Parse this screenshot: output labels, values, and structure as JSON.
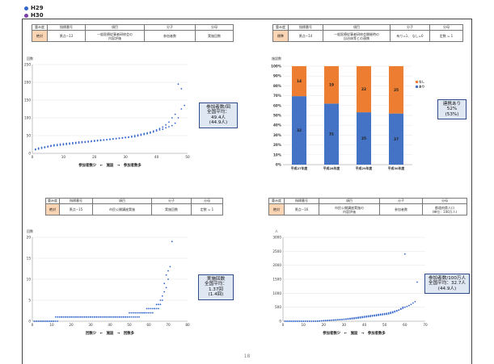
{
  "legend": [
    {
      "label": "H29",
      "color": "#3366cc"
    },
    {
      "label": "H30",
      "color": "#7a3fa8"
    }
  ],
  "page_number": "18",
  "table_headers": [
    "重み度",
    "指標番号",
    "項目",
    "分子",
    "分母"
  ],
  "charts": {
    "tl": {
      "row": [
        "絶対",
        "黒点−13",
        "一般医療従事者研修会の\n内容評価",
        "参加者数",
        "実施回数"
      ],
      "callout": [
        "参加者数/回",
        "全国平均：",
        "49.4人",
        "(44.9人)"
      ]
    },
    "tr": {
      "row": [
        "標準",
        "黒点−14",
        "一般医療従事者研修会開催時の\n自治体等との連携",
        "有り=1、 なし=0",
        "定数 = 1"
      ],
      "callout": [
        "連携あり",
        "52%",
        "(53%)"
      ]
    },
    "bl": {
      "row": [
        "絶対",
        "黒点−15",
        "市民公開講座実施",
        "実施回数",
        "定数 = 1"
      ],
      "callout": [
        "実施回数",
        "全国平均：",
        "1.37回",
        "(1.4回)"
      ]
    },
    "br": {
      "row": [
        "絶対",
        "黒点−16",
        "市民公開講座実施の\n内容評価",
        "参加者数",
        "都道府県人口\n(単位：100万人)"
      ],
      "callout": [
        "参加者数/100万人",
        "全国平均：32.7人",
        "(44.9人)"
      ]
    }
  },
  "chart_data": [
    {
      "id": "tl",
      "type": "scatter",
      "ylabel": "回数",
      "xlabel": "参加者数少　←　施設　→　参加者数多",
      "xlim": [
        0,
        50
      ],
      "ylim": [
        0,
        250
      ],
      "xticks": [
        0,
        10,
        20,
        30,
        40,
        50
      ],
      "yticks": [
        0,
        50,
        100,
        150,
        200,
        250
      ],
      "series": [
        {
          "color": "#3366cc",
          "values": [
            12,
            15,
            17,
            18,
            20,
            22,
            24,
            25,
            26,
            27,
            28,
            29,
            30,
            31,
            32,
            33,
            33,
            34,
            35,
            36,
            37,
            38,
            38,
            39,
            40,
            41,
            42,
            43,
            44,
            45,
            46,
            48,
            50,
            52,
            54,
            56,
            58,
            60,
            63,
            66,
            70,
            74,
            80,
            88,
            100,
            110,
            195,
            182
          ]
        },
        {
          "color": "#3366cc",
          "values": [
            10,
            12,
            14,
            16,
            18,
            20,
            21,
            22,
            23,
            24,
            25,
            26,
            27,
            28,
            29,
            30,
            31,
            32,
            33,
            34,
            35,
            36,
            37,
            38,
            39,
            40,
            41,
            42,
            43,
            44,
            45,
            46,
            47,
            49,
            51,
            53,
            55,
            57,
            60,
            63,
            66,
            68,
            72,
            75,
            78,
            85,
            100,
            125,
            135
          ]
        }
      ]
    },
    {
      "id": "tr",
      "type": "bar",
      "stacked": true,
      "ylabel": "施設数",
      "categories": [
        "平成27年度",
        "平成28年度",
        "平成29年度",
        "平成30年度"
      ],
      "yticks": [
        "0%",
        "10%",
        "20%",
        "30%",
        "40%",
        "50%",
        "60%",
        "70%",
        "80%",
        "90%",
        "100%"
      ],
      "series": [
        {
          "name": "あり",
          "color": "#4472c4",
          "values": [
            32,
            31,
            25,
            27
          ]
        },
        {
          "name": "なし",
          "color": "#ed7d31",
          "values": [
            14,
            19,
            22,
            25
          ]
        }
      ]
    },
    {
      "id": "bl",
      "type": "scatter",
      "ylabel": "回数",
      "xlabel": "回数少　←　施設　→　回数多",
      "xlim": [
        0,
        80
      ],
      "ylim": [
        0,
        20
      ],
      "xticks": [
        0,
        10,
        20,
        30,
        40,
        50,
        60,
        70,
        80
      ],
      "yticks": [
        0,
        5,
        10,
        15,
        20
      ],
      "series": [
        {
          "color": "#3366cc",
          "values": [
            0,
            0,
            0,
            0,
            0,
            0,
            0,
            0,
            0,
            0,
            0,
            1,
            1,
            1,
            1,
            1,
            1,
            1,
            1,
            1,
            1,
            1,
            1,
            1,
            1,
            1,
            1,
            1,
            1,
            1,
            1,
            1,
            1,
            1,
            1,
            1,
            1,
            1,
            1,
            1,
            1,
            1,
            1,
            1,
            1,
            1,
            1,
            1,
            1,
            1,
            1,
            1,
            1,
            1,
            1,
            2,
            2,
            2,
            2,
            2,
            2,
            2,
            3,
            3,
            3,
            4,
            5,
            7,
            8,
            10,
            13,
            19
          ]
        },
        {
          "color": "#3366cc",
          "values": [
            0,
            0,
            0,
            0,
            0,
            0,
            0,
            0,
            0,
            0,
            0,
            0,
            0,
            1,
            1,
            1,
            1,
            1,
            1,
            1,
            1,
            1,
            1,
            1,
            1,
            1,
            1,
            1,
            1,
            1,
            1,
            1,
            1,
            1,
            1,
            1,
            1,
            1,
            1,
            1,
            1,
            1,
            1,
            1,
            1,
            1,
            1,
            1,
            1,
            2,
            2,
            2,
            2,
            2,
            2,
            2,
            2,
            2,
            3,
            3,
            3,
            3,
            3,
            4,
            4,
            5,
            6,
            9,
            11,
            12
          ]
        }
      ]
    },
    {
      "id": "br",
      "type": "scatter",
      "ylabel": "人",
      "xlabel": "参加者数少　←　施設　→　参加者数多",
      "xlim": [
        0,
        70
      ],
      "ylim": [
        0,
        3000
      ],
      "xticks": [
        0,
        10,
        20,
        30,
        40,
        50,
        60,
        70
      ],
      "yticks": [
        0,
        500,
        1000,
        1500,
        2000,
        2500,
        3000
      ],
      "series": [
        {
          "color": "#3366cc",
          "values": [
            0,
            0,
            0,
            0,
            0,
            0,
            0,
            0,
            0,
            0,
            0,
            0,
            0,
            0,
            0,
            0,
            0,
            5,
            10,
            15,
            20,
            25,
            30,
            35,
            40,
            45,
            50,
            55,
            60,
            65,
            70,
            75,
            80,
            85,
            90,
            100,
            110,
            120,
            130,
            140,
            150,
            160,
            170,
            180,
            190,
            200,
            210,
            220,
            230,
            240,
            250,
            260,
            280,
            300,
            330,
            360,
            400,
            450,
            500,
            2400
          ]
        },
        {
          "color": "#3366cc",
          "values": [
            0,
            0,
            0,
            0,
            0,
            0,
            0,
            0,
            0,
            0,
            0,
            0,
            0,
            0,
            0,
            0,
            5,
            10,
            15,
            20,
            25,
            30,
            35,
            40,
            45,
            50,
            55,
            60,
            65,
            70,
            80,
            90,
            100,
            110,
            120,
            130,
            140,
            150,
            160,
            170,
            180,
            190,
            200,
            210,
            220,
            230,
            240,
            250,
            260,
            270,
            280,
            300,
            320,
            340,
            360,
            380,
            400,
            430,
            460,
            500,
            530,
            560,
            600,
            650,
            700,
            1400
          ]
        }
      ]
    }
  ]
}
